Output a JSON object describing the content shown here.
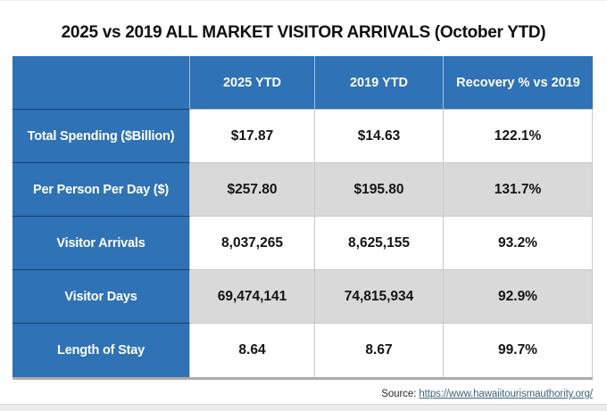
{
  "chart_data": {
    "type": "table",
    "title": "2025 vs 2019 ALL MARKET VISITOR ARRIVALS (October YTD)",
    "columns": [
      "",
      "2025 YTD",
      "2019 YTD",
      "Recovery % vs 2019"
    ],
    "rows": [
      [
        "Total Spending ($Billion)",
        "$17.87",
        "$14.63",
        "122.1%"
      ],
      [
        "Per Person Per Day ($)",
        "$257.80",
        "$195.80",
        "131.7%"
      ],
      [
        "Visitor Arrivals",
        "8,037,265",
        "8,625,155",
        "93.2%"
      ],
      [
        "Visitor Days",
        "69,474,141",
        "74,815,934",
        "92.9%"
      ],
      [
        "Length of Stay",
        "8.64",
        "8.67",
        "99.7%"
      ]
    ]
  },
  "source": {
    "prefix": "Source:",
    "link_text": "https://www.hawaiitourismauthority.org/"
  },
  "colors": {
    "header_blue": "#2F72B6",
    "row_gray": "#D9D9D9",
    "link": "#3D6472"
  }
}
